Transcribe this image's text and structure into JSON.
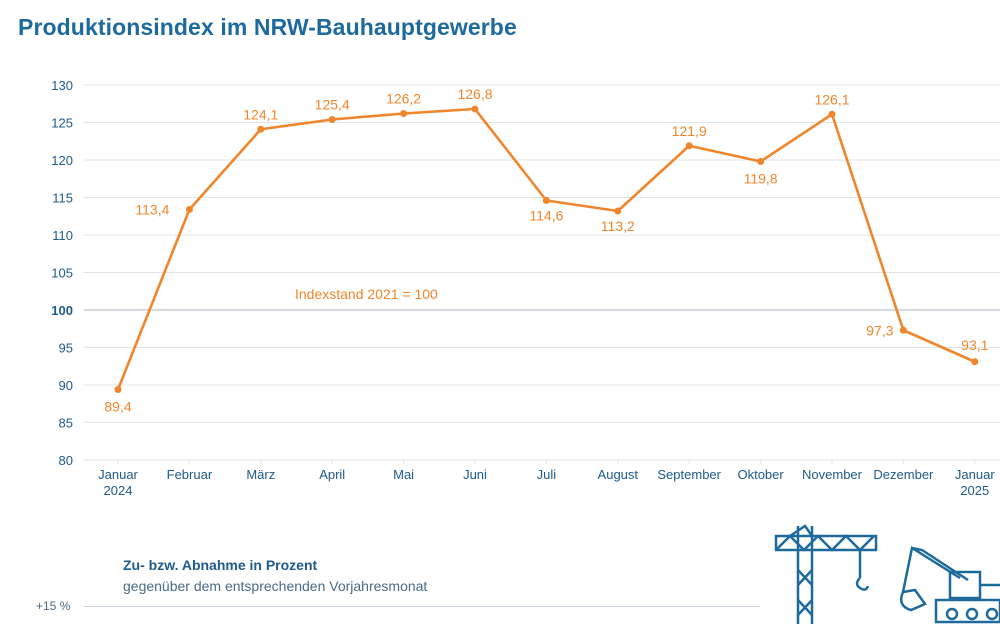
{
  "title": "Produktionsindex im NRW-Bauhauptgewerbe",
  "colors": {
    "accent": "#f0862c",
    "text": "#1e6a9c",
    "grid": "#dfe5ea",
    "ref_line": "#a9b6c2",
    "icon": "#1e6a9c"
  },
  "icons": [
    "crane-icon",
    "excavator-icon"
  ],
  "chart_data": {
    "type": "line",
    "categories": [
      "Januar\n2024",
      "Februar",
      "März",
      "April",
      "Mai",
      "Juni",
      "Juli",
      "August",
      "September",
      "Oktober",
      "November",
      "Dezember",
      "Januar\n2025"
    ],
    "series": [
      {
        "name": "",
        "values": [
          89.4,
          113.4,
          124.1,
          125.4,
          126.2,
          126.8,
          114.6,
          113.2,
          121.9,
          119.8,
          126.1,
          97.3,
          93.1
        ],
        "labels": [
          "89,4",
          "113,4",
          "124,1",
          "125,4",
          "126,2",
          "126,8",
          "114,6",
          "113,2",
          "121,9",
          "119,8",
          "126,1",
          "97,3",
          "93,1"
        ]
      }
    ],
    "ylim": [
      80,
      130
    ],
    "yticks": [
      80,
      85,
      90,
      95,
      100,
      105,
      110,
      115,
      120,
      125,
      130
    ],
    "reference_line": 100,
    "annotation": "Indexstand 2021 = 100",
    "grid": true,
    "legend": "none"
  },
  "lower_chart": {
    "heading": "Zu- bzw. Abnahme in Prozent",
    "subheading": "gegenüber dem entsprechenden Vorjahresmonat",
    "tick_label": "+15 %"
  }
}
